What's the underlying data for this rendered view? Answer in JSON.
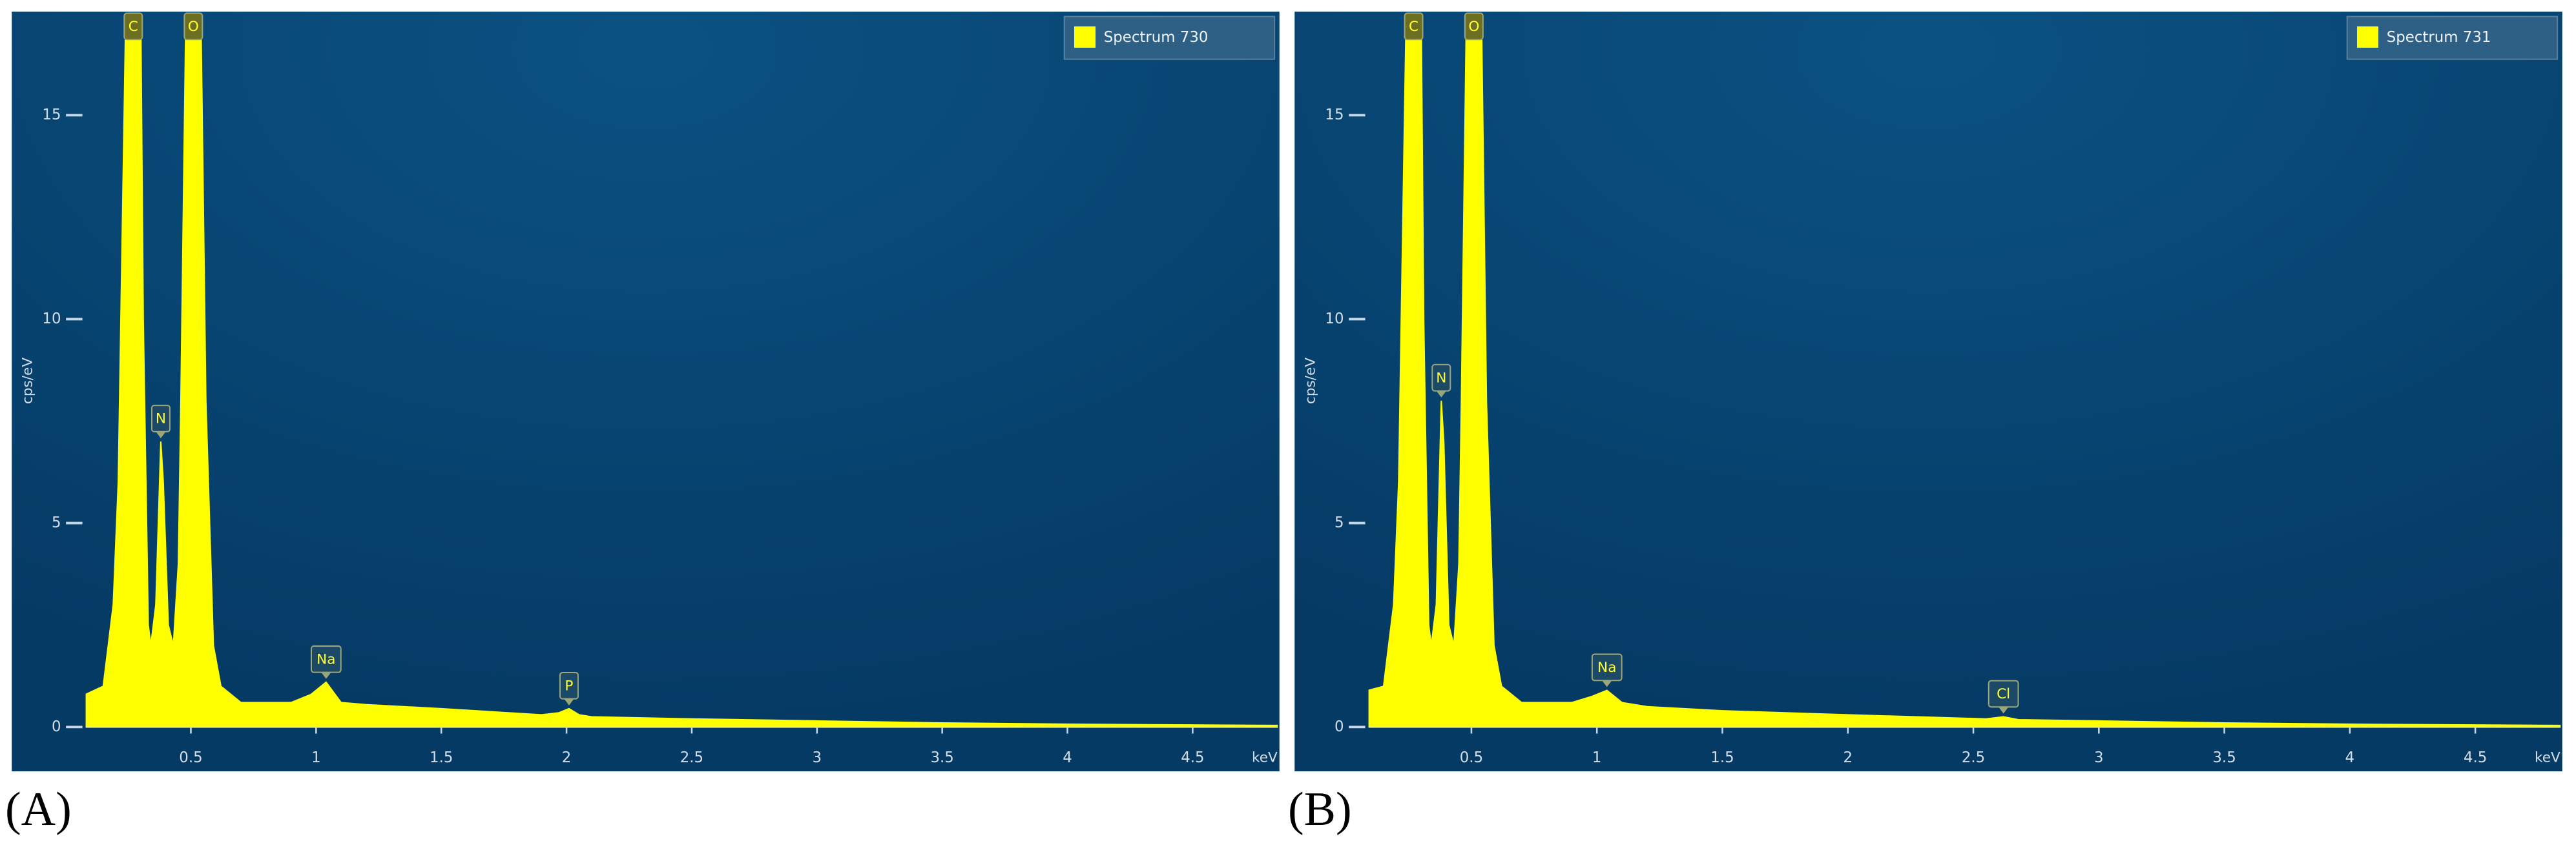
{
  "chart_data": [
    {
      "type": "area",
      "panel_label": "(A)",
      "ylabel": "cps/eV",
      "xlabel": "keV",
      "legend": "upper right",
      "xlim": [
        0.08,
        4.84
      ],
      "ylim": [
        0,
        17.5
      ],
      "xticks": [
        0.5,
        1,
        1.5,
        2,
        2.5,
        3,
        3.5,
        4,
        4.5
      ],
      "yticks": [
        0,
        5,
        10,
        15
      ],
      "x": [
        0.08,
        0.15,
        0.19,
        0.21,
        0.24,
        0.27,
        0.3,
        0.31,
        0.33,
        0.34,
        0.36,
        0.38,
        0.39,
        0.41,
        0.43,
        0.45,
        0.46,
        0.48,
        0.51,
        0.54,
        0.56,
        0.59,
        0.62,
        0.66,
        0.7,
        0.8,
        0.9,
        0.98,
        1.04,
        1.1,
        1.2,
        1.5,
        1.9,
        1.97,
        2.01,
        2.05,
        2.1,
        2.5,
        3,
        3.5,
        4,
        4.5,
        4.84
      ],
      "series": [
        {
          "name": "Spectrum 730",
          "color": "#ffff00",
          "values": [
            0.8,
            1,
            3,
            6,
            17.5,
            17.5,
            17.5,
            10,
            2.5,
            2,
            3,
            7,
            6,
            2.5,
            2,
            4,
            8,
            17.5,
            17.5,
            17.5,
            8,
            2,
            1,
            0.8,
            0.6,
            0.6,
            0.6,
            0.8,
            1.1,
            0.6,
            0.55,
            0.45,
            0.3,
            0.35,
            0.45,
            0.3,
            0.25,
            0.2,
            0.15,
            0.1,
            0.07,
            0.05,
            0.04
          ]
        }
      ],
      "annotations": [
        {
          "text": "C",
          "x": 0.27
        },
        {
          "text": "O",
          "x": 0.51
        },
        {
          "text": "N",
          "x": 0.38
        },
        {
          "text": "Na",
          "x": 1.04
        },
        {
          "text": "P",
          "x": 2.01
        }
      ]
    },
    {
      "type": "area",
      "panel_label": "(B)",
      "ylabel": "cps/eV",
      "xlabel": "keV",
      "legend": "upper right",
      "xlim": [
        0.09,
        4.84
      ],
      "ylim": [
        0,
        17.5
      ],
      "xticks": [
        0.5,
        1,
        1.5,
        2,
        2.5,
        3,
        3.5,
        4,
        4.5
      ],
      "yticks": [
        0,
        5,
        10,
        15
      ],
      "x": [
        0.09,
        0.15,
        0.19,
        0.21,
        0.24,
        0.27,
        0.3,
        0.31,
        0.33,
        0.34,
        0.36,
        0.38,
        0.39,
        0.41,
        0.43,
        0.45,
        0.46,
        0.48,
        0.51,
        0.54,
        0.56,
        0.59,
        0.62,
        0.66,
        0.7,
        0.8,
        0.9,
        0.98,
        1.04,
        1.1,
        1.2,
        1.5,
        2,
        2.55,
        2.62,
        2.68,
        3,
        3.5,
        4,
        4.5,
        4.84
      ],
      "series": [
        {
          "name": "Spectrum 731",
          "color": "#ffff00",
          "values": [
            0.9,
            1,
            3,
            6,
            17.5,
            17.5,
            17.5,
            10,
            2.5,
            2,
            3,
            8,
            7,
            2.5,
            2,
            4,
            8,
            17.5,
            17.5,
            17.5,
            8,
            2,
            1,
            0.8,
            0.6,
            0.6,
            0.6,
            0.75,
            0.9,
            0.6,
            0.5,
            0.4,
            0.3,
            0.2,
            0.25,
            0.18,
            0.15,
            0.1,
            0.07,
            0.05,
            0.04
          ]
        }
      ],
      "annotations": [
        {
          "text": "C",
          "x": 0.27
        },
        {
          "text": "O",
          "x": 0.51
        },
        {
          "text": "N",
          "x": 0.38
        },
        {
          "text": "Na",
          "x": 1.04
        },
        {
          "text": "Cl",
          "x": 2.62
        }
      ]
    }
  ]
}
